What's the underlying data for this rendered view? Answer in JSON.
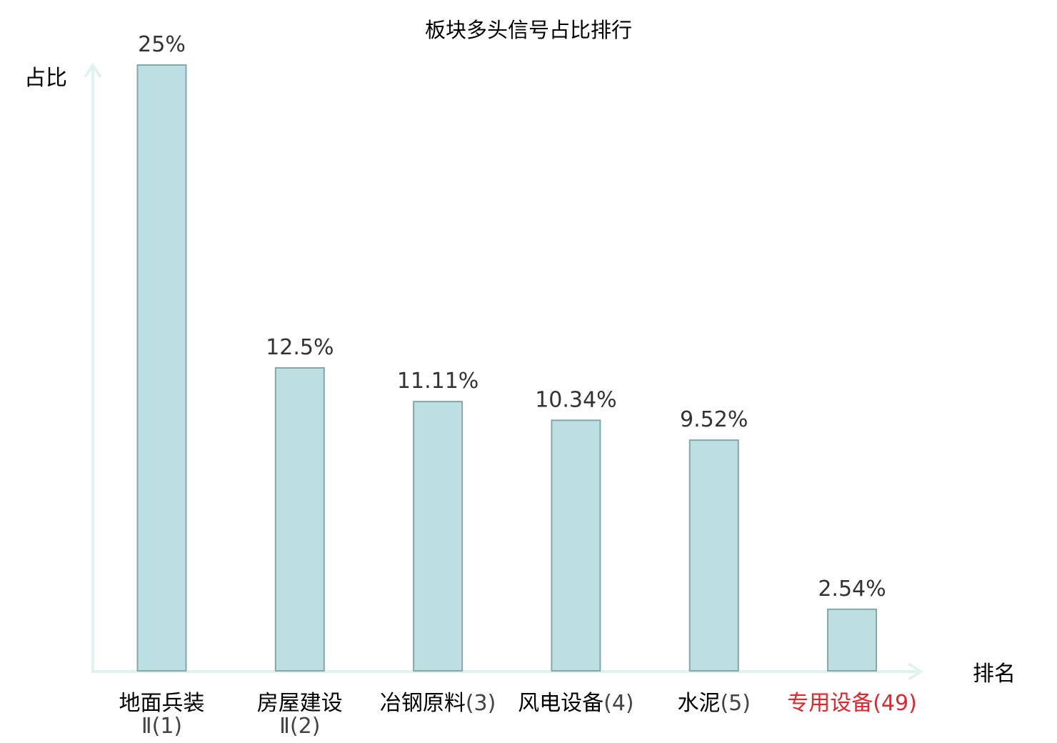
{
  "chart_data": {
    "type": "bar",
    "title": "板块多头信号占比排行",
    "ylabel": "占比",
    "xlabel": "排名",
    "ylim": [
      0,
      25
    ],
    "grid": false,
    "categories": [
      {
        "name_lines": [
          "地面兵装",
          "Ⅱ"
        ],
        "rank": "(1)",
        "highlight": false
      },
      {
        "name_lines": [
          "房屋建设",
          "Ⅱ"
        ],
        "rank": "(2)",
        "highlight": false
      },
      {
        "name_lines": [
          "冶钢原料"
        ],
        "rank": "(3)",
        "highlight": false
      },
      {
        "name_lines": [
          "风电设备"
        ],
        "rank": "(4)",
        "highlight": false
      },
      {
        "name_lines": [
          "水泥"
        ],
        "rank": "(5)",
        "highlight": false
      },
      {
        "name_lines": [
          "专用设备"
        ],
        "rank": "(49)",
        "highlight": true
      }
    ],
    "values": [
      25,
      12.5,
      11.11,
      10.34,
      9.52,
      2.54
    ],
    "value_labels": [
      "25%",
      "12.5%",
      "11.11%",
      "10.34%",
      "9.52%",
      "2.54%"
    ]
  },
  "colors": {
    "bar_fill": "#bce0e2",
    "bar_stroke": "#87a6a8",
    "axis": "#e0f2ef",
    "text": "#000000",
    "value_text": "#333333",
    "rank_text": "#444444",
    "highlight": "#e8232a"
  }
}
